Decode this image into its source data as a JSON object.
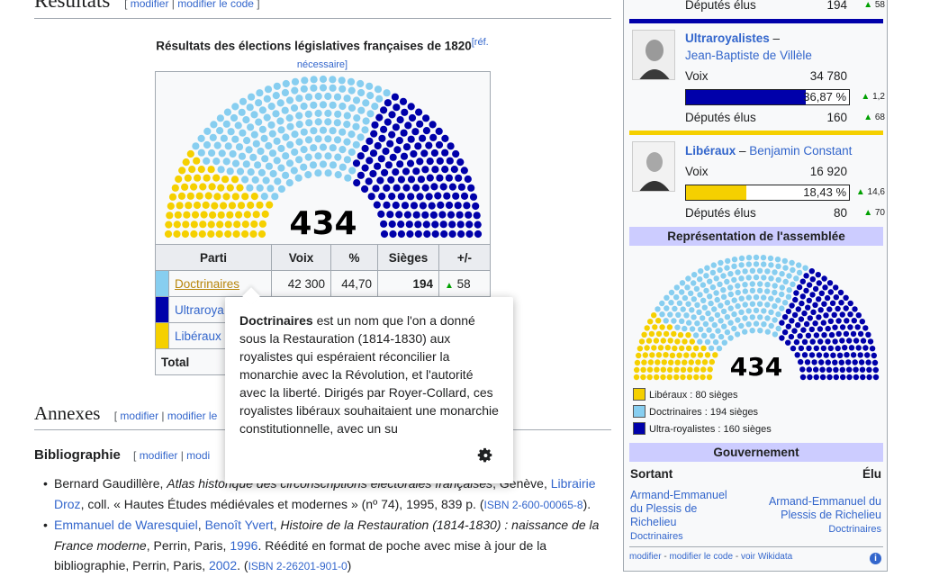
{
  "sections": {
    "resultats": {
      "title": "Résultats",
      "edit": "modifier",
      "edit_code": "modifier le code"
    },
    "annexes": {
      "title": "Annexes",
      "edit": "modifier",
      "edit_code": "modifier le"
    },
    "bibliographie": {
      "title": "Bibliographie",
      "edit": "modifier",
      "edit_code": "modi"
    }
  },
  "caption": {
    "text": "Résultats des élections législatives françaises de 1820",
    "ref": "[réf. nécessaire]"
  },
  "hemicycle_main": {
    "total": "434"
  },
  "colors": {
    "doctrinaires": "#87cef0",
    "ultras": "#0000aa",
    "liberaux": "#f5d000",
    "header": "#ccccff",
    "up": "#00a000"
  },
  "seats": {
    "liberaux": 80,
    "doctrinaires": 194,
    "ultras": 160
  },
  "table": {
    "headers": [
      "Parti",
      "Voix",
      "%",
      "Sièges",
      "+/-"
    ],
    "rows": [
      {
        "party": "Doctrinaires",
        "voix": "42 300",
        "pct": "44,70",
        "sieges": "194",
        "change": "58"
      },
      {
        "party": "Ultraroya",
        "voix": "",
        "pct": "",
        "sieges": "",
        "change": ""
      },
      {
        "party": "Libéraux",
        "voix": "",
        "pct": "",
        "sieges": "",
        "change": ""
      }
    ],
    "total_label": "Total"
  },
  "popup": {
    "term": "Doctrinaires",
    "text": " est un nom que l'on a donné sous la Restauration (1814-1830) aux royalistes qui espéraient réconcilier la monarchie avec la Révolution, et l'autorité avec la liberté. Dirigés par Royer-Collard, ces royalistes libéraux souhaitaient une monarchie constitutionnelle, avec un su",
    "settings_icon": "gear-icon"
  },
  "bibliography": {
    "item1": {
      "author": "Bernard Gaudillère, ",
      "title": "Atlas historique des circonscriptions électorales françaises",
      "mid": ", Genève, ",
      "publisher": "Librairie Droz",
      "rest": ", coll. « Hautes Études médiévales et modernes » (nº 74), 1995, 839 p. (",
      "isbn": "ISBN 2-600-00065-8",
      "end": ")."
    },
    "item2": {
      "author1": "Emmanuel de Waresquiel",
      "sep": ", ",
      "author2": "Benoît Yvert",
      "sep2": ", ",
      "title": "Histoire de la Restauration (1814-1830) : naissance de la France moderne",
      "mid": ", Perrin, Paris, ",
      "year": "1996",
      "rest": ". Réédité en format de poche avec mise à jour de la bibliographie, Perrin, Paris, ",
      "year2": "2002",
      "mid2": ". (",
      "isbn": "ISBN 2-26201-901-0",
      "end": ")"
    }
  },
  "infobox": {
    "top_row": {
      "label": "Députés élus",
      "value": "194",
      "change": "58"
    },
    "ultras": {
      "party": "Ultraroyalistes",
      "dash": " –",
      "leader": "Jean-Baptiste de Villèle",
      "voix_label": "Voix",
      "voix": "34 780",
      "pct": "36,87 %",
      "pct_value": 36.87,
      "pct_change": "1,2",
      "deputes_label": "Députés élus",
      "deputes": "160",
      "deputes_change": "68"
    },
    "liberaux": {
      "party": "Libéraux",
      "dash": " – ",
      "leader": "Benjamin Constant",
      "voix_label": "Voix",
      "voix": "16 920",
      "pct": "18,43 %",
      "pct_value": 18.43,
      "pct_change": "14,6",
      "deputes_label": "Députés élus",
      "deputes": "80",
      "deputes_change": "70"
    },
    "representation": {
      "header": "Représentation de l'assemblée",
      "total": "434",
      "legend": [
        "Libéraux : 80 sièges",
        "Doctrinaires : 194 sièges",
        "Ultra-royalistes : 160 sièges"
      ]
    },
    "gouvernement": {
      "header": "Gouvernement",
      "sortant_label": "Sortant",
      "elu_label": "Élu",
      "sortant_name": "Armand-Emmanuel du Plessis de Richelieu",
      "sortant_party": "Doctrinaires",
      "elu_name": "Armand-Emmanuel du Plessis de Richelieu",
      "elu_party": "Doctrinaires"
    },
    "footer": {
      "edit": "modifier",
      "edit_code": "modifier le code",
      "wikidata": "voir Wikidata",
      "sep": " - "
    }
  }
}
